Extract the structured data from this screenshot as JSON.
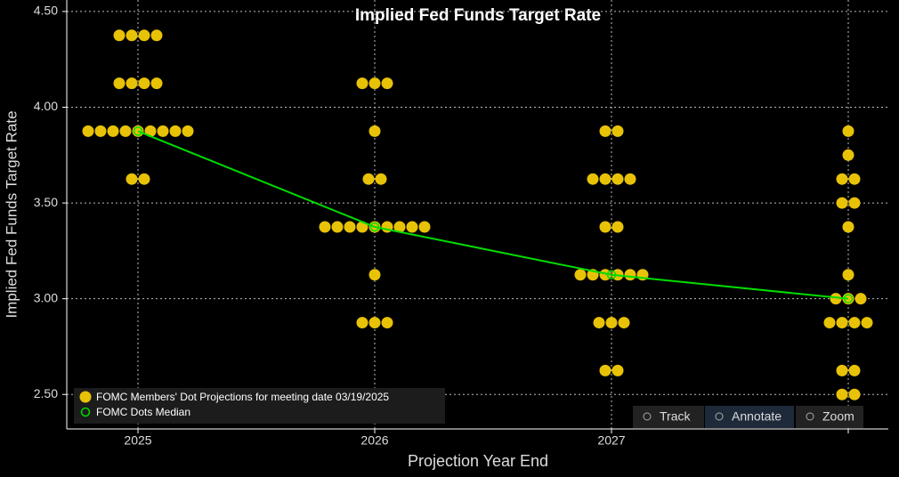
{
  "chart_data": {
    "type": "dot",
    "title": "Implied Fed Funds Target Rate",
    "x_label": "Projection Year End",
    "y_label": "Implied Fed Funds Target Rate",
    "categories": [
      "2025",
      "2026",
      "2027",
      null
    ],
    "series": [
      {
        "name": "FOMC Members' Dot Projections for meeting date 03/19/2025",
        "color": "#e8c206",
        "values": [
          [
            4.375,
            4.375,
            4.375,
            4.375,
            4.125,
            4.125,
            4.125,
            4.125,
            3.875,
            3.875,
            3.875,
            3.875,
            3.875,
            3.875,
            3.875,
            3.875,
            3.875,
            3.625,
            3.625
          ],
          [
            4.125,
            4.125,
            4.125,
            3.875,
            3.625,
            3.625,
            3.375,
            3.375,
            3.375,
            3.375,
            3.375,
            3.375,
            3.375,
            3.375,
            3.375,
            3.125,
            2.875,
            2.875,
            2.875
          ],
          [
            3.875,
            3.875,
            3.625,
            3.625,
            3.625,
            3.625,
            3.375,
            3.375,
            3.125,
            3.125,
            3.125,
            3.125,
            3.125,
            3.125,
            2.875,
            2.875,
            2.875,
            2.625,
            2.625
          ],
          [
            3.875,
            3.75,
            3.625,
            3.625,
            3.5,
            3.5,
            3.375,
            3.125,
            3.0,
            3.0,
            3.0,
            2.875,
            2.875,
            2.875,
            2.875,
            2.625,
            2.625,
            2.5,
            2.5
          ]
        ]
      },
      {
        "name": "FOMC Dots Median",
        "color": "#00dd00",
        "values": [
          3.875,
          3.375,
          3.125,
          3.0
        ]
      }
    ],
    "ylim": [
      2.32,
      4.56
    ],
    "yticks": [
      {
        "value": 2.5,
        "label": "2.50"
      },
      {
        "value": 3.0,
        "label": "3.00"
      },
      {
        "value": 3.5,
        "label": "3.50"
      },
      {
        "value": 4.0,
        "label": "4.00"
      },
      {
        "value": 4.5,
        "label": "4.50"
      }
    ],
    "grid": true,
    "legend": "lower left",
    "controls": [
      "Track",
      "Annotate",
      "Zoom"
    ]
  }
}
